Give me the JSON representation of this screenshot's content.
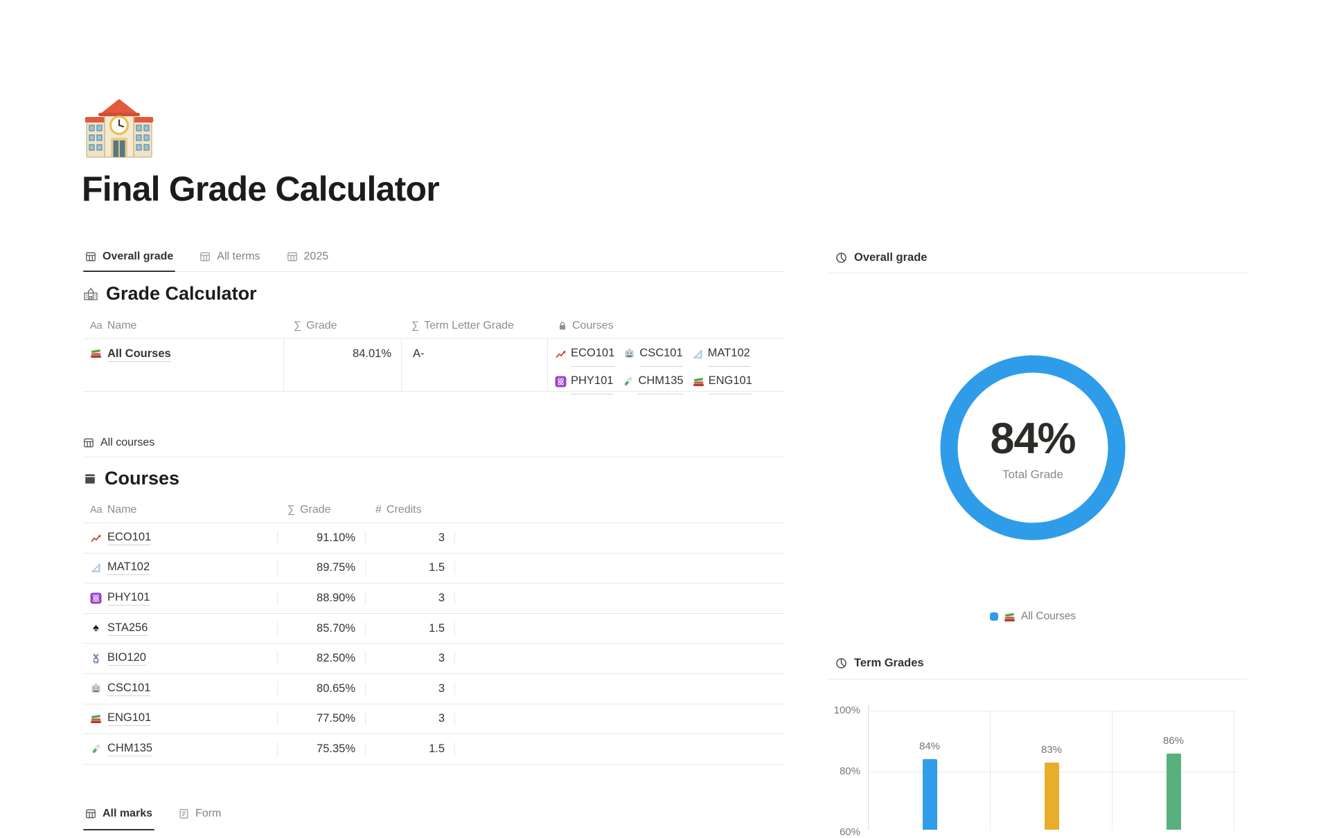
{
  "page": {
    "title": "Final Grade Calculator",
    "emoji": "school"
  },
  "left": {
    "view_tabs": [
      {
        "label": "Overall grade",
        "icon": "table-view",
        "active": true
      },
      {
        "label": "All terms",
        "icon": "table-view",
        "active": false
      },
      {
        "label": "2025",
        "icon": "table-view",
        "active": false
      }
    ],
    "grade_calculator": {
      "icon": "school-building",
      "heading": "Grade Calculator",
      "columns": [
        {
          "icon": "text",
          "label": "Name"
        },
        {
          "icon": "sum",
          "label": "Grade"
        },
        {
          "icon": "sum",
          "label": "Term Letter Grade"
        },
        {
          "icon": "lock",
          "label": "Courses"
        }
      ],
      "row": {
        "name": {
          "icon": "books",
          "label": "All Courses"
        },
        "grade": "84.01%",
        "term_letter_grade": "A-",
        "courses": [
          {
            "icon": "chart-increasing",
            "label": "ECO101"
          },
          {
            "icon": "robot",
            "label": "CSC101"
          },
          {
            "icon": "triangle-ruler",
            "label": "MAT102"
          },
          {
            "icon": "atom",
            "label": "PHY101"
          },
          {
            "icon": "test-tube",
            "label": "CHM135"
          },
          {
            "icon": "books",
            "label": "ENG101"
          }
        ]
      }
    },
    "all_courses_view": {
      "icon": "table-view",
      "label": "All courses"
    },
    "courses_table": {
      "icon": "archive-box",
      "heading": "Courses",
      "columns": [
        {
          "icon": "text",
          "label": "Name"
        },
        {
          "icon": "sum",
          "label": "Grade"
        },
        {
          "icon": "number",
          "label": "Credits"
        }
      ],
      "rows": [
        {
          "icon": "chart-increasing",
          "name": "ECO101",
          "grade": "91.10%",
          "credits": "3"
        },
        {
          "icon": "triangle-ruler",
          "name": "MAT102",
          "grade": "89.75%",
          "credits": "1.5"
        },
        {
          "icon": "atom",
          "name": "PHY101",
          "grade": "88.90%",
          "credits": "3"
        },
        {
          "icon": "spade",
          "name": "STA256",
          "grade": "85.70%",
          "credits": "1.5"
        },
        {
          "icon": "dna",
          "name": "BIO120",
          "grade": "82.50%",
          "credits": "3"
        },
        {
          "icon": "robot",
          "name": "CSC101",
          "grade": "80.65%",
          "credits": "3"
        },
        {
          "icon": "books",
          "name": "ENG101",
          "grade": "77.50%",
          "credits": "3"
        },
        {
          "icon": "test-tube",
          "name": "CHM135",
          "grade": "75.35%",
          "credits": "1.5"
        }
      ]
    },
    "bottom_tabs": [
      {
        "label": "All marks",
        "icon": "table-view",
        "active": true
      },
      {
        "label": "Form",
        "icon": "form",
        "active": false
      }
    ]
  },
  "right": {
    "overall_grade": {
      "icon": "pie-chart",
      "heading": "Overall grade"
    },
    "term_grades": {
      "icon": "pie-chart",
      "heading": "Term Grades"
    }
  },
  "chart_data": [
    {
      "type": "pie",
      "title": "Overall grade",
      "series": [
        {
          "name": "All Courses",
          "value": 84
        }
      ],
      "center_label": "84%",
      "center_sublabel": "Total Grade",
      "ring_color": "#2e9ce9",
      "legend": [
        {
          "label": "All Courses",
          "icon": "books",
          "color": "#2e9ce9"
        }
      ],
      "legend_position": "bottom"
    },
    {
      "type": "bar",
      "title": "Term Grades",
      "values": [
        84,
        83,
        86
      ],
      "value_labels": [
        "84%",
        "83%",
        "86%"
      ],
      "bar_colors": [
        "#2f9de8",
        "#e8ad2b",
        "#58b17c"
      ],
      "yticks": [
        {
          "label": "100%",
          "value": 100
        },
        {
          "label": "80%",
          "value": 80
        },
        {
          "label": "60%",
          "value": 60
        }
      ],
      "ylim_visible": [
        60,
        100
      ],
      "grid": true,
      "legend_position": "none"
    }
  ]
}
